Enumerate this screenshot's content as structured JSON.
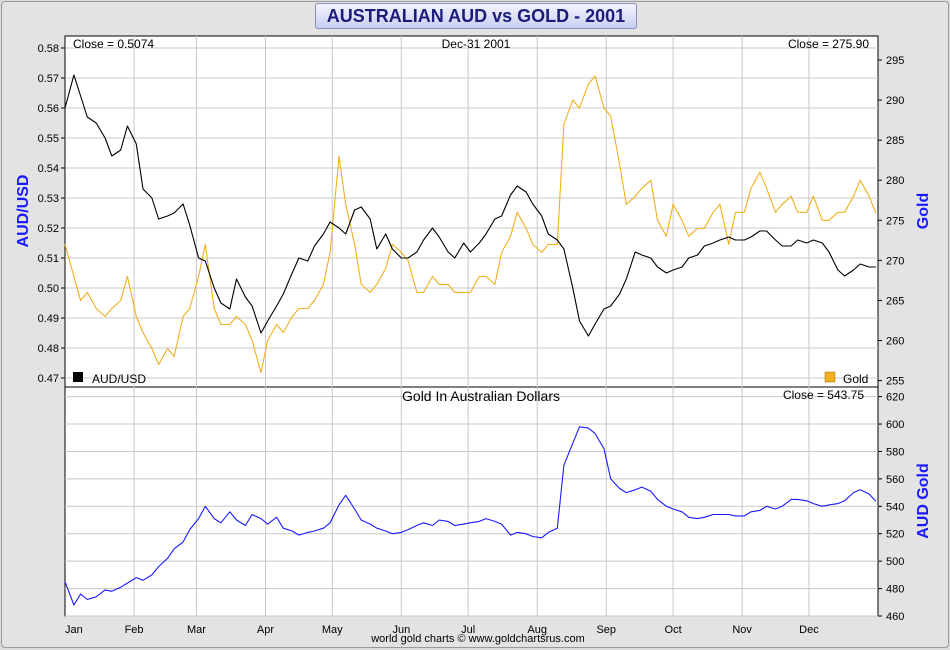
{
  "title": "AUSTRALIAN AUD vs GOLD - 2001",
  "footer": "world gold charts © www.goldchartsrus.com",
  "colors": {
    "aud": "#000000",
    "gold": "#f0b020",
    "aud_gold": "#1a1aff",
    "axis_label": "#1a1aff"
  },
  "chart_data": [
    {
      "type": "line",
      "panel": "top",
      "header_left": "Close = 0.5074",
      "header_center": "Dec-31  2001",
      "header_right": "Close = 275.90",
      "ylabel_left": "AUD/USD",
      "ylabel_right": "Gold",
      "ylim_left": [
        0.467,
        0.584
      ],
      "ylim_right": [
        254.2,
        298.0
      ],
      "yticks_left": [
        "0.47",
        "0.48",
        "0.49",
        "0.50",
        "0.51",
        "0.52",
        "0.53",
        "0.54",
        "0.55",
        "0.56",
        "0.57",
        "0.58"
      ],
      "yticks_right": [
        "255",
        "260",
        "265",
        "270",
        "275",
        "280",
        "285",
        "290",
        "295"
      ],
      "x_months": [
        "Jan",
        "Feb",
        "Mar",
        "Apr",
        "May",
        "Jun",
        "Jul",
        "Aug",
        "Sep",
        "Oct",
        "Nov",
        "Dec"
      ],
      "legend": [
        {
          "name": "AUD/USD",
          "position": "bottom-left"
        },
        {
          "name": "Gold",
          "position": "bottom-right"
        }
      ],
      "series": [
        {
          "name": "AUD/USD",
          "axis": "left",
          "x": [
            0,
            4,
            7,
            10,
            14,
            18,
            21,
            25,
            28,
            32,
            35,
            39,
            42,
            46,
            49,
            53,
            56,
            60,
            63,
            67,
            70,
            74,
            77,
            81,
            84,
            88,
            91,
            95,
            98,
            102,
            105,
            109,
            112,
            116,
            119,
            123,
            126,
            130,
            133,
            137,
            140,
            144,
            147,
            151,
            154,
            158,
            161,
            165,
            168,
            172,
            175,
            179,
            182,
            186,
            189,
            193,
            196,
            200,
            203,
            207,
            210,
            214,
            217,
            221,
            224,
            228,
            231,
            235,
            238,
            242,
            245,
            249,
            252,
            256,
            259,
            263,
            266,
            270,
            273,
            277,
            280,
            284,
            287,
            291,
            294,
            298,
            301,
            305,
            308,
            312,
            315,
            319,
            322,
            326,
            329,
            333,
            336,
            340,
            343,
            347,
            350,
            354,
            357,
            361,
            364
          ],
          "values": [
            0.56,
            0.571,
            0.564,
            0.557,
            0.555,
            0.55,
            0.544,
            0.546,
            0.554,
            0.548,
            0.533,
            0.53,
            0.523,
            0.524,
            0.525,
            0.528,
            0.521,
            0.51,
            0.509,
            0.5,
            0.495,
            0.493,
            0.503,
            0.497,
            0.494,
            0.485,
            0.489,
            0.494,
            0.498,
            0.505,
            0.51,
            0.509,
            0.514,
            0.518,
            0.522,
            0.52,
            0.518,
            0.526,
            0.527,
            0.523,
            0.513,
            0.518,
            0.513,
            0.51,
            0.51,
            0.512,
            0.516,
            0.52,
            0.517,
            0.512,
            0.51,
            0.515,
            0.512,
            0.515,
            0.518,
            0.523,
            0.524,
            0.531,
            0.534,
            0.532,
            0.528,
            0.524,
            0.518,
            0.516,
            0.513,
            0.5,
            0.489,
            0.484,
            0.488,
            0.493,
            0.494,
            0.498,
            0.503,
            0.512,
            0.511,
            0.51,
            0.507,
            0.505,
            0.506,
            0.507,
            0.51,
            0.511,
            0.514,
            0.515,
            0.516,
            0.517,
            0.516,
            0.516,
            0.517,
            0.519,
            0.519,
            0.516,
            0.514,
            0.514,
            0.516,
            0.515,
            0.516,
            0.515,
            0.512,
            0.506,
            0.504,
            0.506,
            0.508,
            0.507,
            0.507
          ]
        },
        {
          "name": "Gold",
          "axis": "right",
          "x": [
            0,
            4,
            7,
            10,
            14,
            18,
            21,
            25,
            28,
            32,
            35,
            39,
            42,
            46,
            49,
            53,
            56,
            60,
            63,
            67,
            70,
            74,
            77,
            81,
            84,
            88,
            91,
            95,
            98,
            102,
            105,
            109,
            112,
            116,
            119,
            123,
            126,
            130,
            133,
            137,
            140,
            144,
            147,
            151,
            154,
            158,
            161,
            165,
            168,
            172,
            175,
            179,
            182,
            186,
            189,
            193,
            196,
            200,
            203,
            207,
            210,
            214,
            217,
            221,
            224,
            228,
            231,
            235,
            238,
            242,
            245,
            249,
            252,
            256,
            259,
            263,
            266,
            270,
            273,
            277,
            280,
            284,
            287,
            291,
            294,
            298,
            301,
            305,
            308,
            312,
            315,
            319,
            322,
            326,
            329,
            333,
            336,
            340,
            343,
            347,
            350,
            354,
            357,
            361,
            364
          ],
          "values": [
            272,
            268,
            265,
            266,
            264,
            263,
            264,
            265,
            268,
            263,
            261,
            259,
            257,
            259,
            258,
            263,
            264,
            268,
            272,
            264,
            262,
            262,
            263,
            262,
            260,
            256,
            260,
            262,
            261,
            263,
            264,
            264,
            265,
            267,
            271,
            283,
            277,
            272,
            267,
            266,
            267,
            269,
            272,
            271,
            270,
            266,
            266,
            268,
            267,
            267,
            266,
            266,
            266,
            268,
            268,
            267,
            271,
            273,
            276,
            274,
            272,
            271,
            272,
            272,
            287,
            290,
            289,
            292,
            293,
            289,
            288,
            282,
            277,
            278,
            279,
            280,
            275,
            273,
            277,
            275,
            273,
            274,
            274,
            276,
            277,
            272,
            276,
            276,
            279,
            281,
            279,
            276,
            277,
            278,
            276,
            276,
            278,
            275,
            275,
            276,
            276,
            278,
            280,
            278,
            275.9
          ]
        }
      ]
    },
    {
      "type": "line",
      "panel": "bottom",
      "title": "Gold In Australian Dollars",
      "header_right": "Close = 543.75",
      "ylabel_right": "AUD Gold",
      "ylim_right": [
        460,
        627
      ],
      "yticks_right": [
        "460",
        "480",
        "500",
        "520",
        "540",
        "560",
        "580",
        "600",
        "620"
      ],
      "x_months": [
        "Jan",
        "Feb",
        "Mar",
        "Apr",
        "May",
        "Jun",
        "Jul",
        "Aug",
        "Sep",
        "Oct",
        "Nov",
        "Dec"
      ],
      "series": [
        {
          "name": "Gold In Australian Dollars",
          "axis": "right",
          "x": [
            0,
            4,
            7,
            10,
            14,
            18,
            21,
            25,
            28,
            32,
            35,
            39,
            42,
            46,
            49,
            53,
            56,
            60,
            63,
            67,
            70,
            74,
            77,
            81,
            84,
            88,
            91,
            95,
            98,
            102,
            105,
            109,
            112,
            116,
            119,
            123,
            126,
            130,
            133,
            137,
            140,
            144,
            147,
            151,
            154,
            158,
            161,
            165,
            168,
            172,
            175,
            179,
            182,
            186,
            189,
            193,
            196,
            200,
            203,
            207,
            210,
            214,
            217,
            221,
            224,
            228,
            231,
            235,
            238,
            242,
            245,
            249,
            252,
            256,
            259,
            263,
            266,
            270,
            273,
            277,
            280,
            284,
            287,
            291,
            294,
            298,
            301,
            305,
            308,
            312,
            315,
            319,
            322,
            326,
            329,
            333,
            336,
            340,
            343,
            347,
            350,
            354,
            357,
            361,
            364
          ],
          "values": [
            485,
            468,
            476,
            472,
            474,
            479,
            478,
            481,
            484,
            488,
            486,
            490,
            496,
            502,
            509,
            514,
            523,
            531,
            540,
            531,
            528,
            536,
            530,
            526,
            534,
            531,
            527,
            532,
            524,
            522,
            519,
            521,
            522,
            524,
            528,
            541,
            548,
            538,
            530,
            527,
            524,
            522,
            520,
            521,
            523,
            526,
            528,
            526,
            530,
            529,
            526,
            527,
            528,
            529,
            531,
            529,
            527,
            519,
            521,
            520,
            518,
            517,
            521,
            524,
            570,
            586,
            598,
            597,
            593,
            582,
            560,
            553,
            550,
            552,
            554,
            551,
            545,
            540,
            538,
            536,
            532,
            531,
            532,
            534,
            534,
            534,
            533,
            533,
            536,
            537,
            540,
            538,
            540,
            545,
            545,
            544,
            542,
            540,
            541,
            542,
            544,
            550,
            552,
            549,
            543.75
          ]
        }
      ]
    }
  ]
}
